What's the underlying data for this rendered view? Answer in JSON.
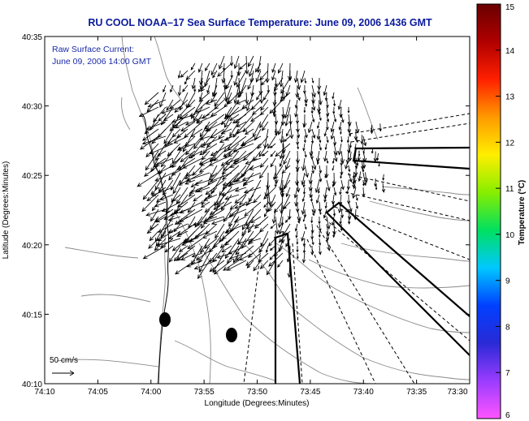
{
  "title": "RU COOL  NOAA–17  Sea Surface Temperature:  June 09, 2006 1436 GMT",
  "annotation": {
    "line1": "Raw Surface Current:",
    "line2": "June 09, 2006 14:00 GMT"
  },
  "map": {
    "x_axis_label": "Longitude (Degrees:Minutes)",
    "y_axis_label": "Latitude (Degrees:Minutes)",
    "x_ticks": [
      "74:10",
      "74:05",
      "74:00",
      "73:55",
      "73:50",
      "73:45",
      "73:40",
      "73:35",
      "73:30"
    ],
    "y_ticks": [
      "40:35",
      "40:30",
      "40:25",
      "40:20",
      "40:15",
      "40:10"
    ],
    "scale_label": "50 cm/s"
  },
  "colorbar": {
    "label": "Temperature (°C)",
    "ticks": [
      "15",
      "14",
      "13",
      "12",
      "11",
      "10",
      "9",
      "8",
      "7",
      "6"
    ],
    "min": 6,
    "max": 15,
    "colors": [
      "#ff55ff",
      "#9a3cff",
      "#2a2ad6",
      "#0040ff",
      "#00c8ff",
      "#00e060",
      "#88ee00",
      "#ffee00",
      "#ff9a00",
      "#ff2000",
      "#b00000",
      "#6a0000"
    ]
  }
}
